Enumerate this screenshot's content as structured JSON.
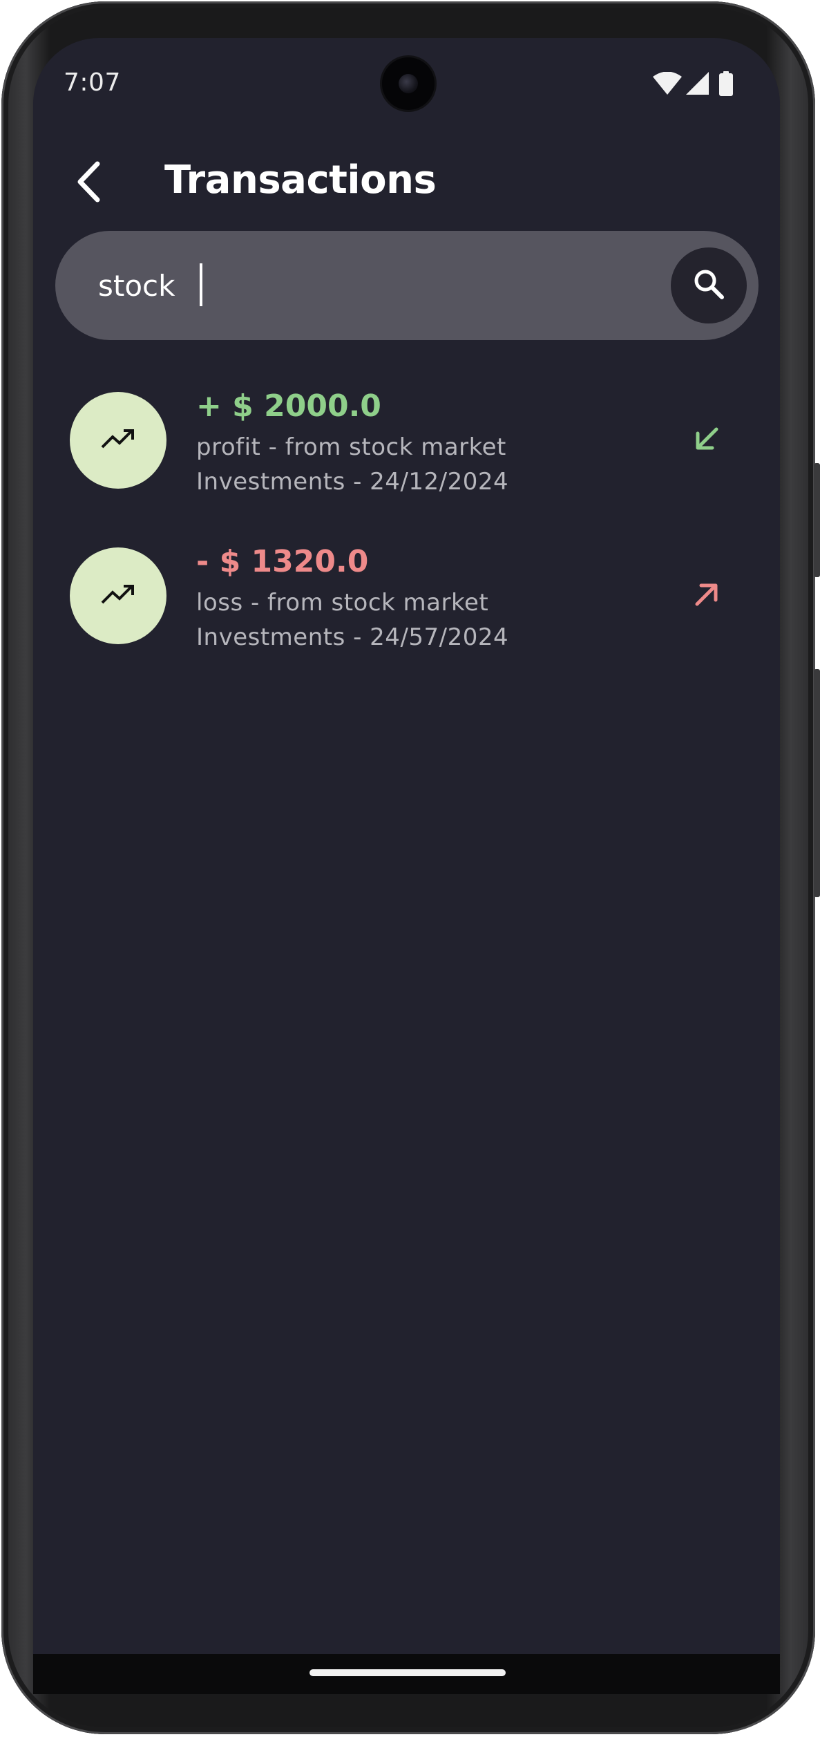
{
  "status_bar": {
    "time": "7:07",
    "icons": [
      "wifi-icon",
      "cellular-signal-icon",
      "battery-icon"
    ]
  },
  "header": {
    "back_icon": "chevron-left-icon",
    "title": "Transactions"
  },
  "search": {
    "value": "stock",
    "icon": "search-icon"
  },
  "transactions": [
    {
      "amount": "+ $ 2000.0",
      "description": "profit - from stock market",
      "category_date": "Investments - 24/12/2024",
      "type": "income",
      "category_icon": "trending-up-icon",
      "direction_icon": "arrow-down-left-icon",
      "color": "#8fcf8a"
    },
    {
      "amount": "- $ 1320.0",
      "description": "loss - from stock market",
      "category_date": "Investments - 24/57/2024",
      "type": "expense",
      "category_icon": "trending-up-icon",
      "direction_icon": "arrow-up-right-icon",
      "color": "#ee8a8a"
    }
  ],
  "colors": {
    "background": "#22222e",
    "search_bar": "#56555f",
    "search_button": "#24232d",
    "avatar": "#dcebc5",
    "income": "#8fcf8a",
    "expense": "#ee8a8a",
    "secondary_text": "#b6b6bc"
  }
}
